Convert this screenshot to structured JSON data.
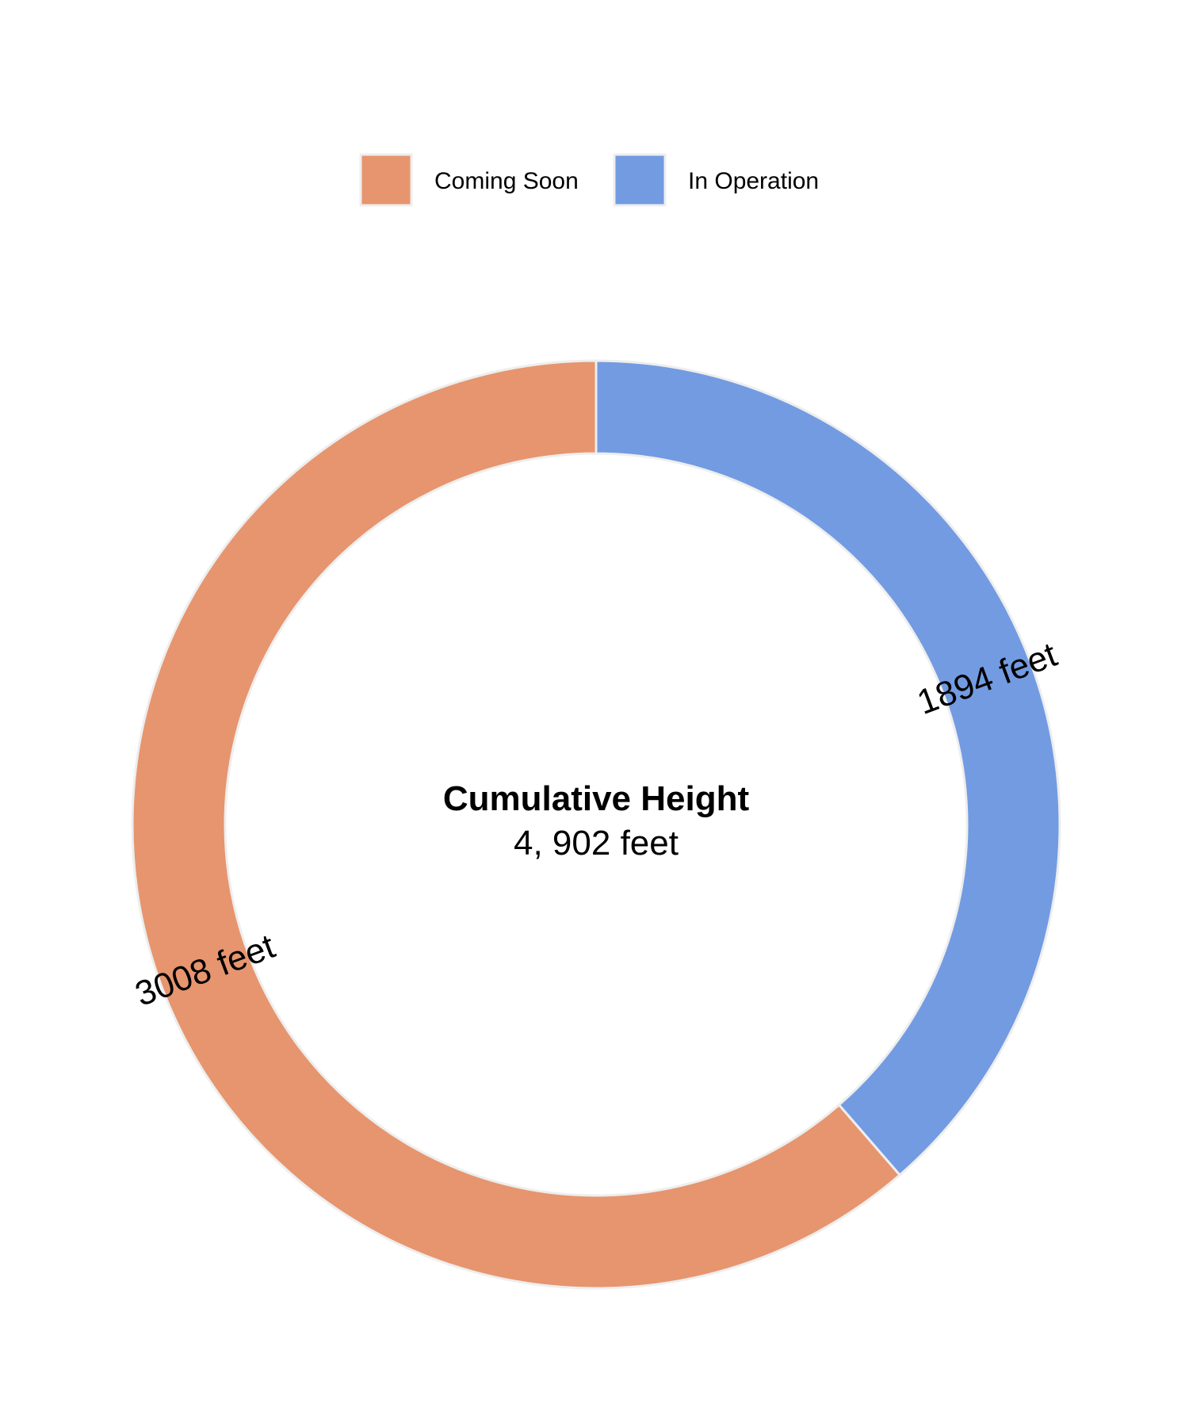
{
  "chart_data": {
    "type": "pie",
    "variant": "donut",
    "categories": [
      "In Operation",
      "Coming Soon"
    ],
    "values": [
      1894,
      3008
    ],
    "slice_labels": [
      "1894 feet",
      "3008 feet"
    ],
    "colors": [
      "#729be2",
      "#e6956e"
    ],
    "border_color": "#eeeeee",
    "legend": {
      "position": "top",
      "entries": [
        "Coming Soon",
        "In Operation"
      ],
      "colors": [
        "#e6956e",
        "#729be2"
      ]
    },
    "center_text": {
      "title": "Cumulative Height",
      "value": "4, 902 feet"
    }
  }
}
